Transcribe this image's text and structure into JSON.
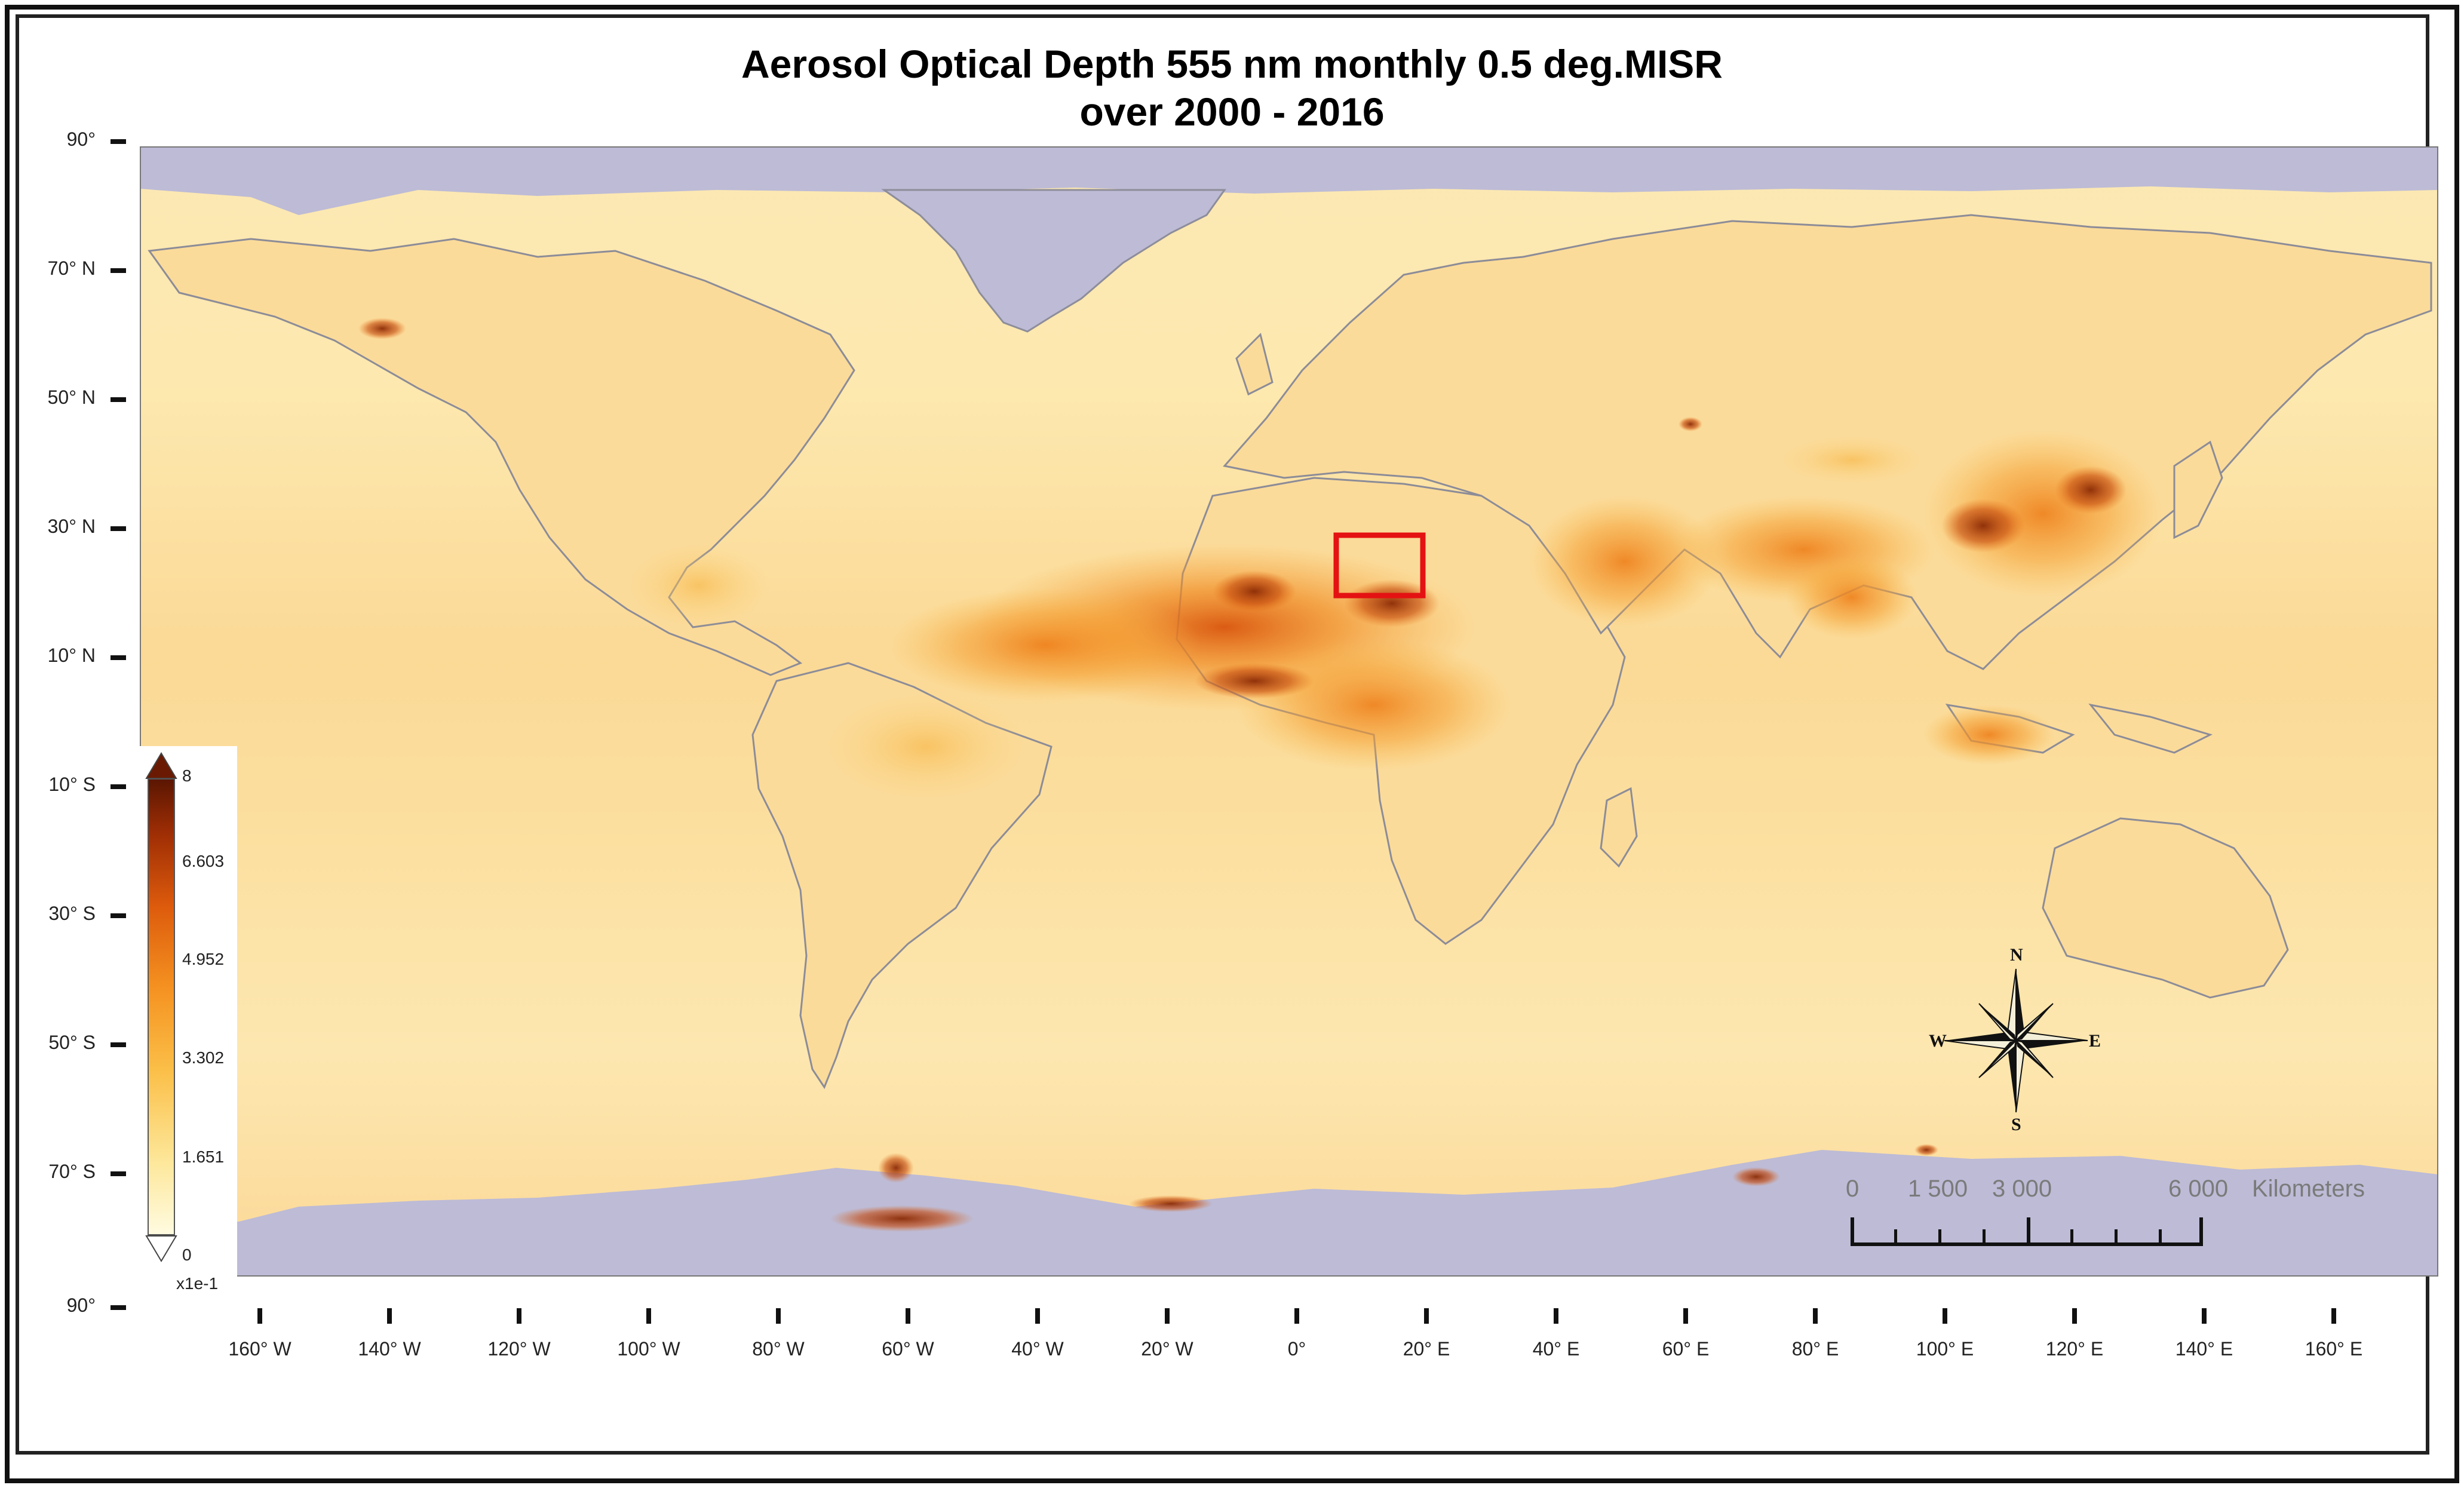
{
  "map": {
    "title_line1": "Aerosol Optical Depth 555 nm monthly 0.5 deg.MISR",
    "title_line2": "over 2000 - 2016",
    "colors": {
      "ocean_background": "#fbe4a8",
      "no_data": "#bdbbd6",
      "highlight_box": "#e41212"
    },
    "latitude_labels": [
      "90°",
      "70° N",
      "50° N",
      "30° N",
      "10° N",
      "10° S",
      "30° S",
      "50° S",
      "70° S",
      "90°"
    ],
    "longitude_labels": [
      "160° W",
      "140° W",
      "120° W",
      "100° W",
      "80° W",
      "60° W",
      "40° W",
      "20° W",
      "0°",
      "20° E",
      "40° E",
      "60° E",
      "80° E",
      "100° E",
      "120° E",
      "140° E",
      "160° E"
    ],
    "legend": {
      "max_label": "8",
      "labels": [
        "6.603",
        "4.952",
        "3.302",
        "1.651",
        "0"
      ],
      "unit": "x1e-1"
    },
    "scale_bar": {
      "labels": [
        "0",
        "1 500",
        "3 000",
        "6 000"
      ],
      "unit": "Kilometers"
    },
    "compass": {
      "n": "N",
      "e": "E",
      "s": "S",
      "w": "W"
    }
  }
}
